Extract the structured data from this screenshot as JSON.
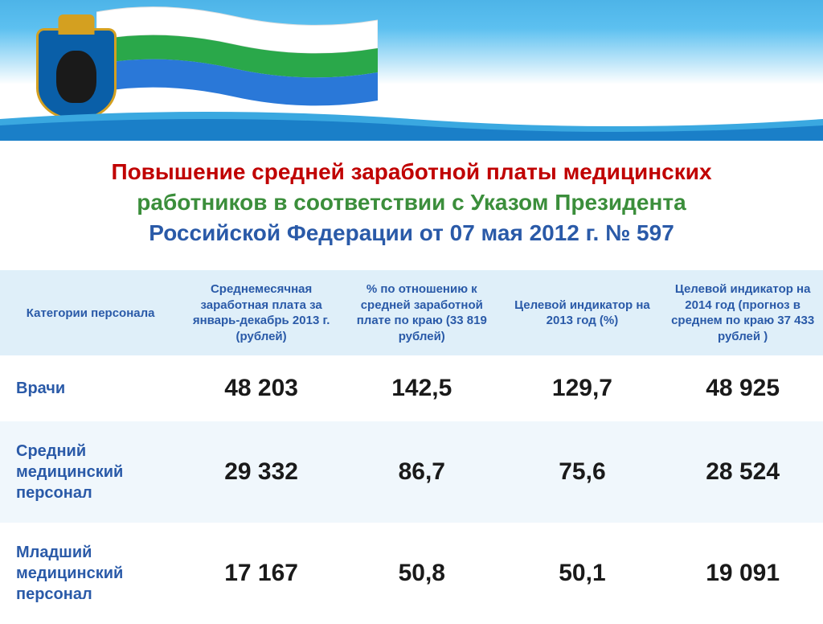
{
  "title": {
    "line1": "Повышение средней заработной платы медицинских",
    "line2": "работников в соответствии с Указом Президента",
    "line3": "Российской Федерации от 07 мая 2012 г. № 597"
  },
  "colors": {
    "title_red": "#c00000",
    "title_green": "#3b8e3b",
    "title_blue": "#2a5aa8",
    "header_bg": "#dfeff9",
    "header_text": "#2a5aa8",
    "row_even_bg": "#f0f7fc",
    "row_odd_bg": "#ffffff",
    "category_text": "#2a5aa8",
    "cell_text": "#1a1a1a"
  },
  "headers": [
    "Категории персонала",
    "Среднемесячная заработная плата за январь-декабрь 2013 г. (рублей)",
    "% по отношению к средней заработной плате по краю (33 819 рублей)",
    "Целевой индикатор на 2013 год (%)",
    "Целевой индикатор на 2014 год (прогноз в среднем по краю 37 433 рублей )"
  ],
  "rows": [
    {
      "category": "Врачи",
      "v1": "48 203",
      "v2": "142,5",
      "v3": "129,7",
      "v4": "48 925"
    },
    {
      "category": "Средний медицинский персонал",
      "v1": "29 332",
      "v2": "86,7",
      "v3": "75,6",
      "v4": "28 524"
    },
    {
      "category": "Младший медицинский персонал",
      "v1": "17 167",
      "v2": "50,8",
      "v3": "50,1",
      "v4": "19 091"
    }
  ]
}
